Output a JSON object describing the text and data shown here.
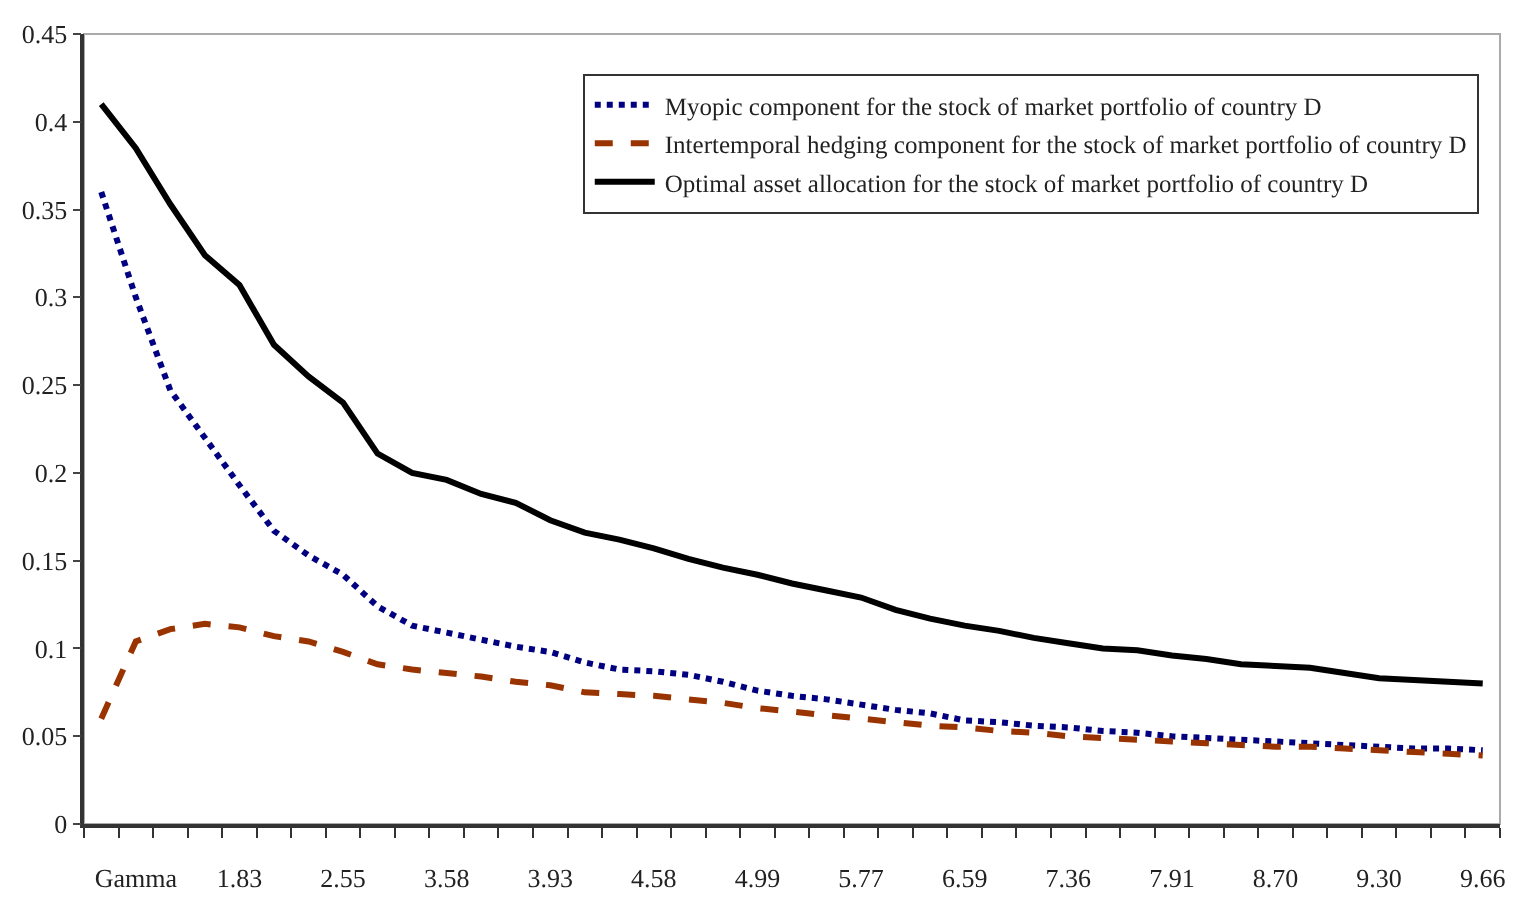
{
  "chart_data": {
    "type": "line",
    "categories": [
      null,
      "Gamma",
      null,
      null,
      "1.83",
      null,
      null,
      "2.55",
      null,
      null,
      "3.58",
      null,
      null,
      "3.93",
      null,
      null,
      "4.58",
      null,
      null,
      "4.99",
      null,
      null,
      "5.77",
      null,
      null,
      "6.59",
      null,
      null,
      "7.36",
      null,
      null,
      "7.91",
      null,
      null,
      "8.70",
      null,
      null,
      "9.30",
      null,
      null,
      "9.66"
    ],
    "ylim": [
      0,
      0.45
    ],
    "yticks": [
      0,
      0.05,
      0.1,
      0.15,
      0.2,
      0.25,
      0.3,
      0.35,
      0.4,
      0.45
    ],
    "grid": false,
    "legend": "top right",
    "marker": "none",
    "series": [
      {
        "name": "Myopic component for the stock of market portfolio of country D",
        "color": "#000080",
        "line_style": "dotted",
        "values": [
          0.36,
          0.3,
          0.247,
          0.22,
          0.193,
          0.167,
          0.153,
          0.142,
          0.124,
          0.113,
          0.109,
          0.105,
          0.101,
          0.098,
          0.092,
          0.088,
          0.087,
          0.085,
          0.081,
          0.076,
          0.073,
          0.071,
          0.068,
          0.065,
          0.063,
          0.059,
          0.058,
          0.056,
          0.055,
          0.053,
          0.052,
          0.05,
          0.049,
          0.048,
          0.047,
          0.046,
          0.045,
          0.044,
          0.043,
          0.043,
          0.042
        ]
      },
      {
        "name": "Intertemporal hedging component for the stock of market portfolio of country D",
        "color": "#993300",
        "line_style": "dashed",
        "values": [
          0.06,
          0.104,
          0.111,
          0.114,
          0.112,
          0.107,
          0.104,
          0.098,
          0.091,
          0.088,
          0.086,
          0.084,
          0.081,
          0.079,
          0.075,
          0.074,
          0.073,
          0.071,
          0.069,
          0.066,
          0.064,
          0.062,
          0.06,
          0.058,
          0.056,
          0.055,
          0.053,
          0.052,
          0.05,
          0.049,
          0.048,
          0.047,
          0.046,
          0.045,
          0.044,
          0.044,
          0.043,
          0.042,
          0.041,
          0.04,
          0.039
        ]
      },
      {
        "name": "Optimal asset allocation for the stock of market portfolio of country D",
        "color": "#000000",
        "line_style": "solid",
        "values": [
          0.41,
          0.385,
          0.353,
          0.324,
          0.307,
          0.273,
          0.255,
          0.24,
          0.211,
          0.2,
          0.196,
          0.188,
          0.183,
          0.173,
          0.166,
          0.162,
          0.157,
          0.151,
          0.146,
          0.142,
          0.137,
          0.133,
          0.129,
          0.122,
          0.117,
          0.113,
          0.11,
          0.106,
          0.103,
          0.1,
          0.099,
          0.096,
          0.094,
          0.091,
          0.09,
          0.089,
          0.086,
          0.083,
          0.082,
          0.081,
          0.08
        ]
      }
    ]
  }
}
